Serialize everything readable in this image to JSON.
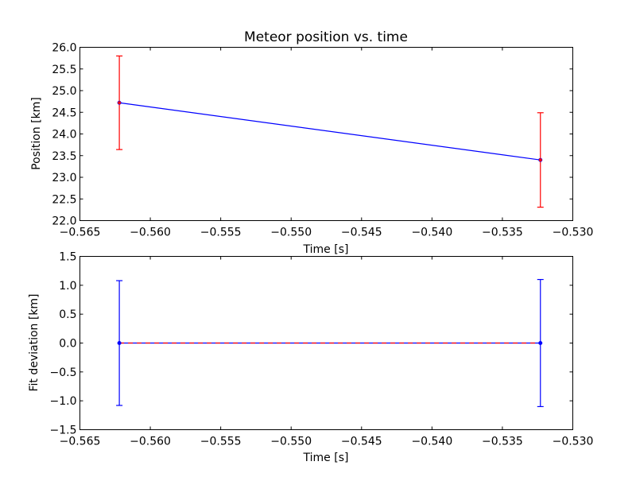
{
  "chart_data": [
    {
      "type": "line",
      "title": "Meteor position vs. time",
      "xlabel": "Time [s]",
      "ylabel": "Position [km]",
      "xlim": [
        -0.565,
        -0.53
      ],
      "ylim": [
        22.0,
        26.0
      ],
      "xticks": [
        -0.565,
        -0.56,
        -0.555,
        -0.55,
        -0.545,
        -0.54,
        -0.535,
        -0.53
      ],
      "xtick_labels": [
        "−0.565",
        "−0.560",
        "−0.555",
        "−0.550",
        "−0.545",
        "−0.540",
        "−0.535",
        "−0.530"
      ],
      "yticks": [
        22.0,
        22.5,
        23.0,
        23.5,
        24.0,
        24.5,
        25.0,
        25.5,
        26.0
      ],
      "ytick_labels": [
        "22.0",
        "22.5",
        "23.0",
        "23.5",
        "24.0",
        "24.5",
        "25.0",
        "25.5",
        "26.0"
      ],
      "grid": false,
      "series": [
        {
          "x": [
            -0.5622,
            -0.5323
          ],
          "y": [
            24.72,
            23.4
          ],
          "yerr": [
            1.08,
            1.09
          ],
          "line_color": "#0000ff",
          "errorbar_color": "#ff0000",
          "marker_color": "#ff0000"
        }
      ]
    },
    {
      "type": "line",
      "title": "",
      "xlabel": "Time [s]",
      "ylabel": "Fit deviation [km]",
      "xlim": [
        -0.565,
        -0.53
      ],
      "ylim": [
        -1.5,
        1.5
      ],
      "xticks": [
        -0.565,
        -0.56,
        -0.555,
        -0.55,
        -0.545,
        -0.54,
        -0.535,
        -0.53
      ],
      "xtick_labels": [
        "−0.565",
        "−0.560",
        "−0.555",
        "−0.550",
        "−0.545",
        "−0.540",
        "−0.535",
        "−0.530"
      ],
      "yticks": [
        -1.5,
        -1.0,
        -0.5,
        0.0,
        0.5,
        1.0,
        1.5
      ],
      "ytick_labels": [
        "−1.5",
        "−1.0",
        "−0.5",
        "0.0",
        "0.5",
        "1.0",
        "1.5"
      ],
      "grid": false,
      "reference_line": {
        "y": 0.0,
        "style": "dashed",
        "color": "#ff0000"
      },
      "series": [
        {
          "x": [
            -0.5622,
            -0.5323
          ],
          "y": [
            0.0,
            0.0
          ],
          "yerr": [
            1.08,
            1.1
          ],
          "line_color": "#0000ff",
          "errorbar_color": "#0000ff",
          "marker_color": "#0000ff"
        }
      ]
    }
  ]
}
